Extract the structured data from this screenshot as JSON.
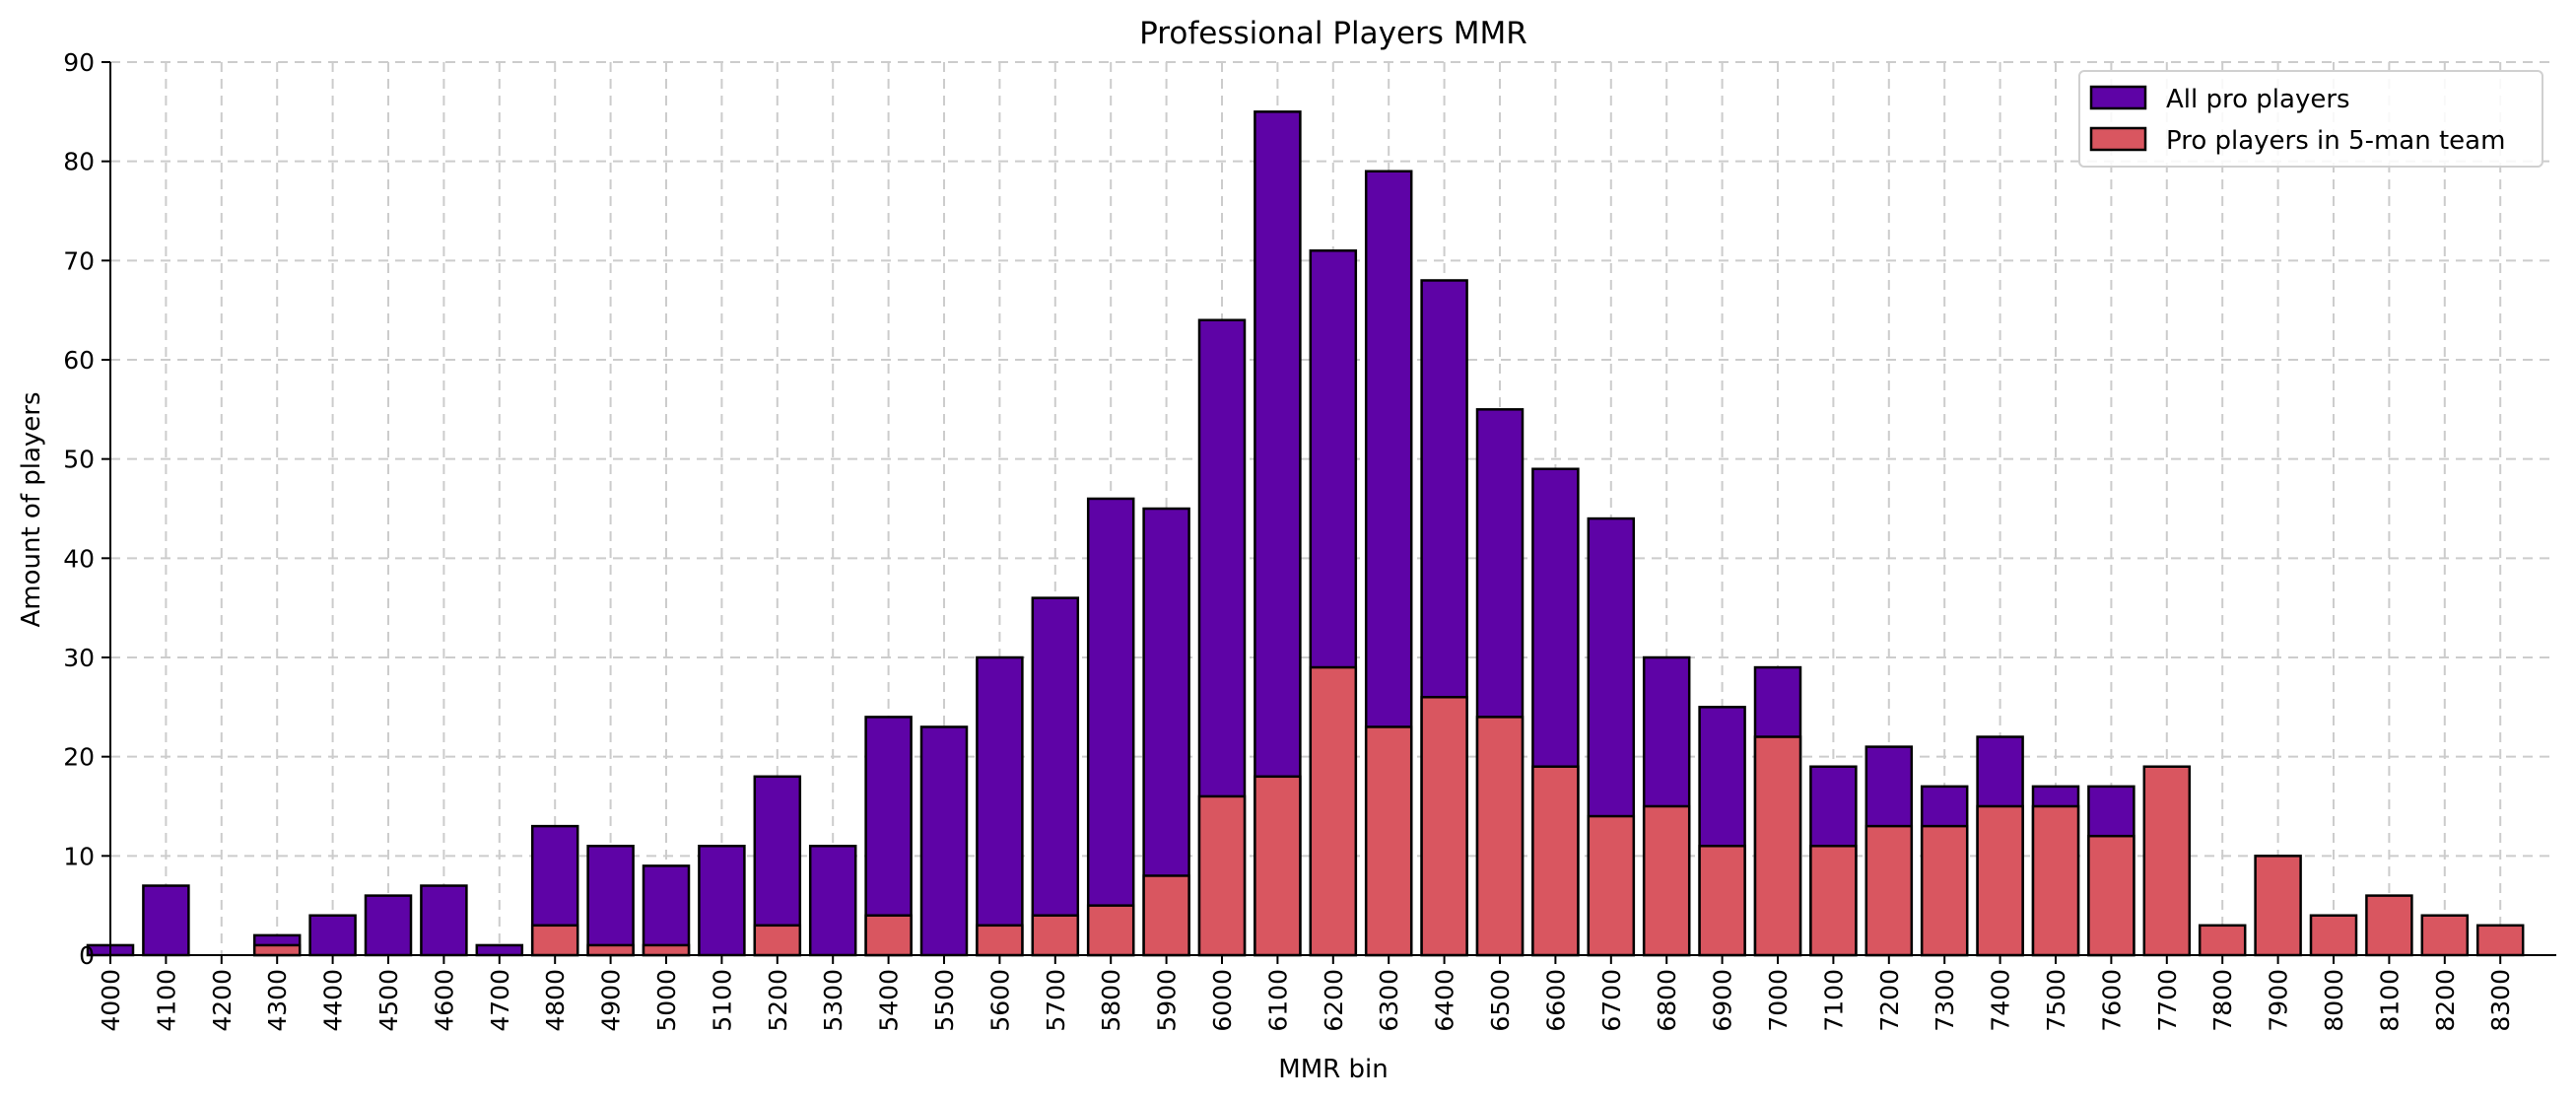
{
  "chart_data": {
    "type": "bar",
    "title": "Professional Players MMR",
    "xlabel": "MMR bin",
    "ylabel": "Amount of players",
    "ylim": [
      0,
      90
    ],
    "yticks": [
      0,
      10,
      20,
      30,
      40,
      50,
      60,
      70,
      80,
      90
    ],
    "grid": true,
    "legend_position": "top-right",
    "overlay": true,
    "categories": [
      "4000",
      "4100",
      "4200",
      "4300",
      "4400",
      "4500",
      "4600",
      "4700",
      "4800",
      "4900",
      "5000",
      "5100",
      "5200",
      "5300",
      "5400",
      "5500",
      "5600",
      "5700",
      "5800",
      "5900",
      "6000",
      "6100",
      "6200",
      "6300",
      "6400",
      "6500",
      "6600",
      "6700",
      "6800",
      "6900",
      "7000",
      "7100",
      "7200",
      "7300",
      "7400",
      "7500",
      "7600",
      "7700",
      "7800",
      "7900",
      "8000",
      "8100",
      "8200",
      "8300"
    ],
    "series": [
      {
        "name": "All pro players",
        "color": "#5e03a6",
        "values": [
          1,
          7,
          0,
          2,
          4,
          6,
          7,
          1,
          13,
          11,
          9,
          11,
          18,
          11,
          24,
          23,
          30,
          36,
          46,
          45,
          64,
          85,
          71,
          79,
          68,
          55,
          49,
          44,
          30,
          25,
          29,
          19,
          21,
          17,
          22,
          17,
          17,
          0,
          0,
          0,
          0,
          0,
          0,
          0
        ]
      },
      {
        "name": "Pro players in 5-man team",
        "color": "#d95660",
        "values": [
          0,
          0,
          0,
          1,
          0,
          0,
          0,
          0,
          3,
          1,
          1,
          0,
          3,
          0,
          4,
          0,
          3,
          4,
          5,
          8,
          16,
          18,
          29,
          23,
          26,
          24,
          19,
          14,
          15,
          11,
          22,
          11,
          13,
          13,
          15,
          15,
          12,
          19,
          3,
          10,
          4,
          6,
          4,
          3
        ]
      }
    ]
  }
}
